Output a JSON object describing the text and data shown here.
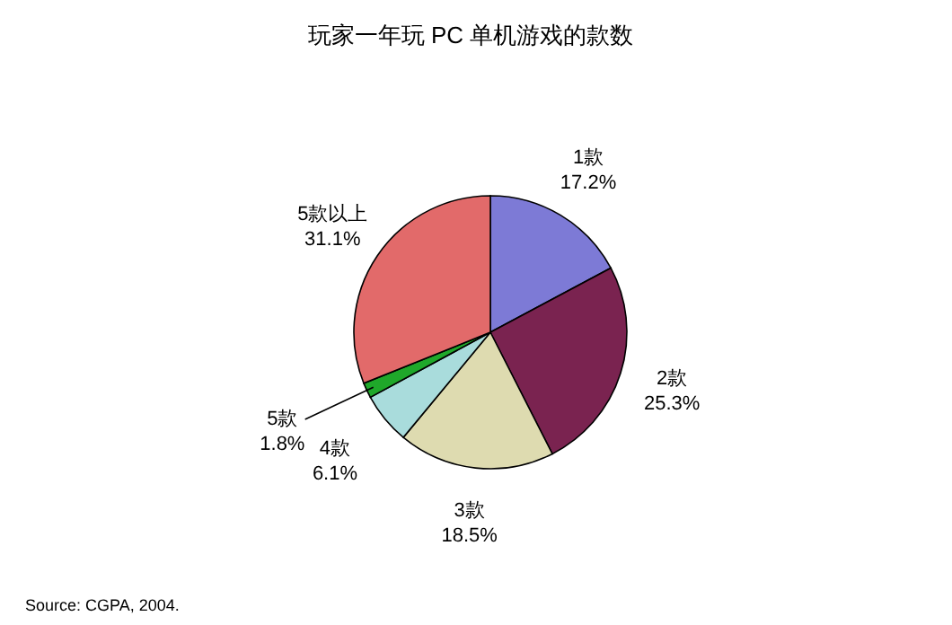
{
  "chart_data": {
    "type": "pie",
    "title": "玩家一年玩 PC 单机游戏的款数",
    "categories": [
      "1款",
      "2款",
      "3款",
      "4款",
      "5款",
      "5款以上"
    ],
    "values": [
      17.2,
      25.3,
      18.5,
      6.1,
      1.8,
      31.1
    ],
    "value_labels": [
      "17.2%",
      "25.3%",
      "18.5%",
      "6.1%",
      "1.8%",
      "31.1%"
    ],
    "colors": [
      "#7d7ad6",
      "#7a2350",
      "#dedbb0",
      "#a9dcdc",
      "#1fa82a",
      "#e26a6a"
    ],
    "annotations": [
      "Source: CGPA, 2004."
    ]
  }
}
